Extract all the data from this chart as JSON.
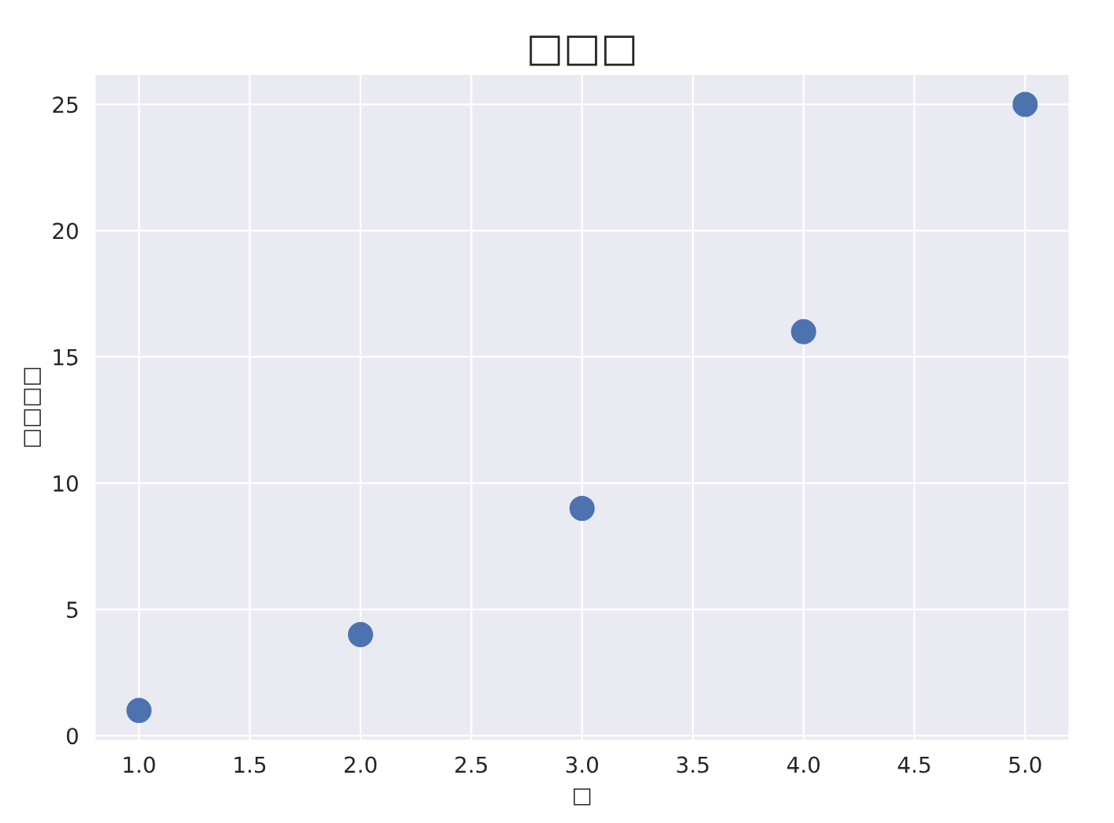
{
  "chart_data": {
    "type": "scatter",
    "title": "□□□",
    "xlabel": "□",
    "ylabel": "□□□□",
    "x": [
      1,
      2,
      3,
      4,
      5
    ],
    "series": [
      {
        "color": "#4c72b0",
        "values": [
          1,
          4,
          9,
          16,
          25
        ]
      }
    ],
    "xlim": [
      0.8,
      5.2
    ],
    "xticks": [
      {
        "value": 1,
        "label": "1.0"
      },
      {
        "value": 1.5,
        "label": "1.5"
      },
      {
        "value": 2,
        "label": "2.0"
      },
      {
        "value": 2.5,
        "label": "2.5"
      },
      {
        "value": 3,
        "label": "3.0"
      },
      {
        "value": 3.5,
        "label": "3.5"
      },
      {
        "value": 4,
        "label": "4.0"
      },
      {
        "value": 4.5,
        "label": "4.5"
      },
      {
        "value": 5,
        "label": "5.0"
      }
    ],
    "ylim": [
      -0.2,
      26.2
    ],
    "yticks": [
      0,
      5,
      10,
      15,
      20,
      25
    ],
    "grid": true,
    "marker": "circle"
  }
}
